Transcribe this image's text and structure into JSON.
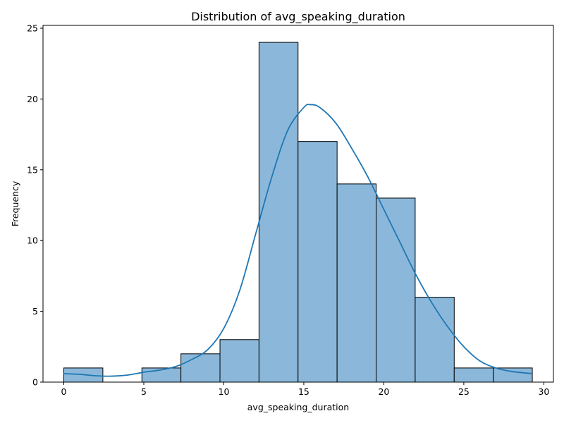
{
  "chart_data": {
    "type": "bar",
    "title": "Distribution of avg_speaking_duration",
    "xlabel": "avg_speaking_duration",
    "ylabel": "Frequency",
    "xlim": [
      -1.3,
      30.6
    ],
    "ylim": [
      0,
      25.2
    ],
    "xticks": [
      0,
      5,
      10,
      15,
      20,
      25,
      30
    ],
    "yticks": [
      0,
      5,
      10,
      15,
      20,
      25
    ],
    "bins": [
      {
        "start": 0.0,
        "end": 2.44,
        "count": 1
      },
      {
        "start": 2.44,
        "end": 4.88,
        "count": 0
      },
      {
        "start": 4.88,
        "end": 7.32,
        "count": 1
      },
      {
        "start": 7.32,
        "end": 9.76,
        "count": 2
      },
      {
        "start": 9.76,
        "end": 12.2,
        "count": 3
      },
      {
        "start": 12.2,
        "end": 14.64,
        "count": 24
      },
      {
        "start": 14.64,
        "end": 17.08,
        "count": 17
      },
      {
        "start": 17.08,
        "end": 19.52,
        "count": 14
      },
      {
        "start": 19.52,
        "end": 21.96,
        "count": 13
      },
      {
        "start": 21.96,
        "end": 24.4,
        "count": 6
      },
      {
        "start": 24.4,
        "end": 26.84,
        "count": 1
      },
      {
        "start": 26.84,
        "end": 29.28,
        "count": 1
      }
    ],
    "kde": {
      "x": [
        0,
        1,
        2,
        3,
        4,
        5,
        6,
        7,
        8,
        9,
        10,
        11,
        12,
        13,
        14,
        15,
        15.4,
        16,
        17,
        18,
        19,
        20,
        21,
        22,
        23,
        24,
        25,
        26,
        27,
        28,
        29.28
      ],
      "y": [
        0.6,
        0.55,
        0.45,
        0.42,
        0.5,
        0.7,
        0.85,
        1.1,
        1.6,
        2.3,
        3.8,
        6.5,
        10.5,
        14.5,
        17.8,
        19.4,
        19.6,
        19.4,
        18.3,
        16.5,
        14.5,
        12.2,
        9.9,
        7.6,
        5.6,
        3.9,
        2.5,
        1.5,
        1.0,
        0.75,
        0.6
      ]
    },
    "grid": false,
    "legend": "none",
    "colors": {
      "bar_fill": "#8bb8da",
      "bar_edge": "#000000",
      "kde_line": "#1f77b4"
    }
  }
}
